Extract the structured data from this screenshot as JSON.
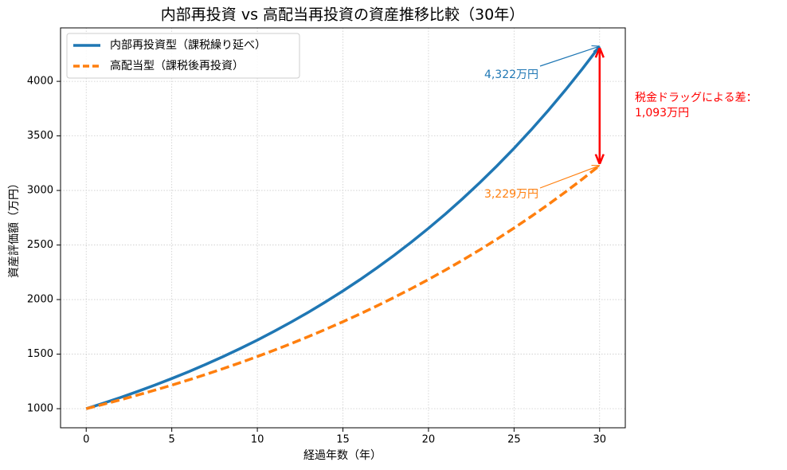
{
  "chart_data": {
    "type": "line",
    "title": "内部再投資 vs 高配当再投資の資産推移比較（30年）",
    "xlabel": "経過年数（年）",
    "ylabel": "資産評価額（万円）",
    "x": [
      0,
      1,
      2,
      3,
      4,
      5,
      6,
      7,
      8,
      9,
      10,
      11,
      12,
      13,
      14,
      15,
      16,
      17,
      18,
      19,
      20,
      21,
      22,
      23,
      24,
      25,
      26,
      27,
      28,
      29,
      30
    ],
    "series": [
      {
        "name": "内部再投資型（課税繰り延べ）",
        "color": "#1f77b4",
        "dash": "solid",
        "values": [
          1000,
          1050,
          1102.5,
          1157.6,
          1215.5,
          1276.3,
          1340.1,
          1407.1,
          1477.5,
          1551.3,
          1628.9,
          1710.3,
          1795.9,
          1885.6,
          1979.9,
          2078.9,
          2182.9,
          2292,
          2406.6,
          2527,
          2653.3,
          2786,
          2925.3,
          3071.5,
          3225.1,
          3386.4,
          3555.7,
          3733.5,
          3920.1,
          4116.1,
          4321.9
        ]
      },
      {
        "name": "高配当型（課税後再投資）",
        "color": "#ff7f0e",
        "dash": "dashed",
        "values": [
          1000,
          1039.8,
          1081.3,
          1124.4,
          1169.2,
          1215.7,
          1264.1,
          1314.5,
          1366.9,
          1421.3,
          1478,
          1536.9,
          1598.1,
          1661.8,
          1728,
          1796.9,
          1868.5,
          1942.9,
          2020.3,
          2100.8,
          2184.5,
          2271.5,
          2362,
          2456.1,
          2554,
          2655.8,
          2761.6,
          2871.6,
          2986,
          3105,
          3228.6
        ]
      }
    ],
    "xlim": [
      -1.5,
      31.5
    ],
    "xticks": [
      0,
      5,
      10,
      15,
      20,
      25,
      30
    ],
    "ylim": [
      825,
      4490
    ],
    "yticks": [
      1000,
      1500,
      2000,
      2500,
      3000,
      3500,
      4000
    ],
    "grid": true,
    "legend": "upper left",
    "annotations": [
      {
        "text": "4,322万円",
        "color": "#1f77b4"
      },
      {
        "text": "3,229万円",
        "color": "#ff7f0e"
      },
      {
        "lines": [
          "税金ドラッグによる差：",
          "1,093万円"
        ],
        "color": "#ff0000"
      }
    ]
  }
}
